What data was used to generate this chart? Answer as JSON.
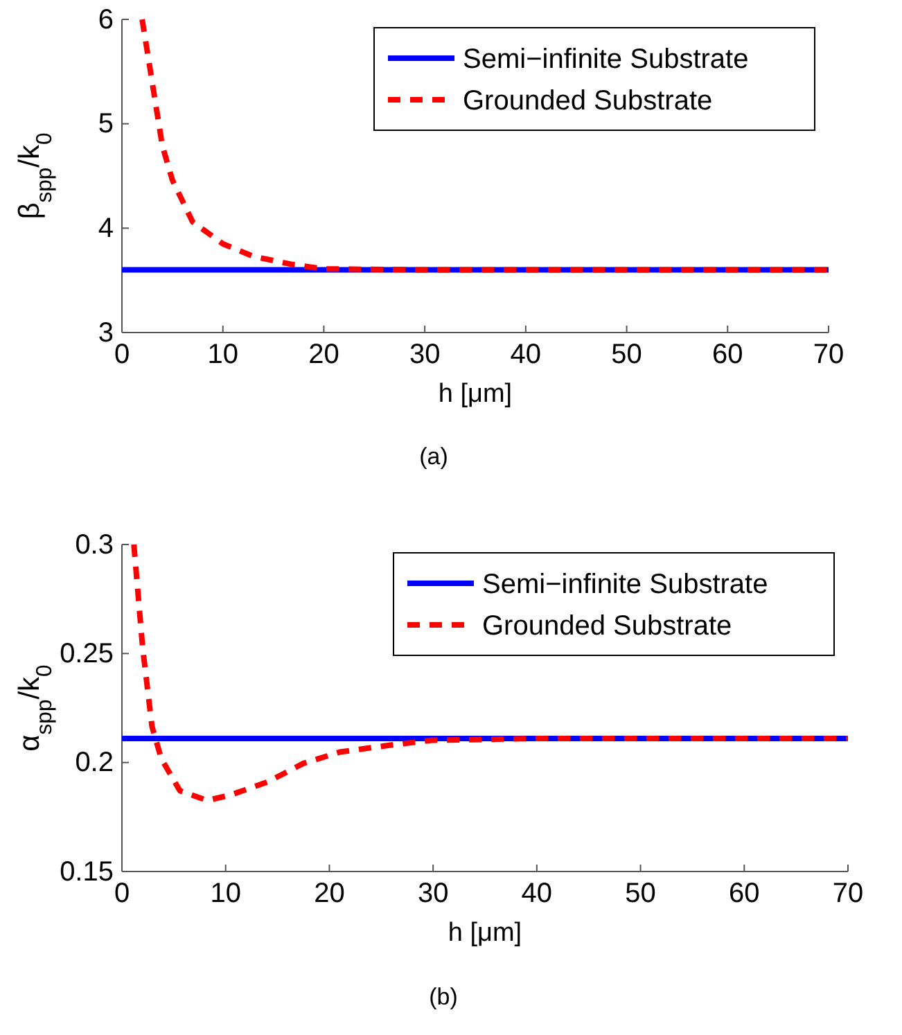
{
  "chart_data": [
    {
      "type": "line",
      "xlabel": "h [μm]",
      "ylabel": "β$_{spp}$/k$_{0}$",
      "xlim": [
        0,
        70
      ],
      "ylim": [
        3,
        6
      ],
      "xticks": [
        0,
        10,
        20,
        30,
        40,
        50,
        60,
        70
      ],
      "yticks": [
        3,
        4,
        5,
        6
      ],
      "legend": "top right",
      "grid": false,
      "annotations": [
        "(a)"
      ],
      "series": [
        {
          "name": "Semi−infinite Substrate",
          "color": "#0000ff",
          "line_style": "solid",
          "x": [
            0,
            70
          ],
          "values": [
            3.6,
            3.6
          ]
        },
        {
          "name": "Grounded Substrate",
          "color": "#ff0000",
          "line_style": "dashed",
          "x": [
            2,
            2.5,
            4,
            5,
            7,
            10,
            13,
            17,
            20,
            30,
            70
          ],
          "values": [
            6,
            5.7,
            4.79,
            4.46,
            4.06,
            3.85,
            3.73,
            3.65,
            3.61,
            3.6,
            3.6
          ]
        }
      ]
    },
    {
      "type": "line",
      "xlabel": "h [μm]",
      "ylabel": "α$_{spp}$/k$_{0}$",
      "xlim": [
        0,
        70
      ],
      "ylim": [
        0.15,
        0.3
      ],
      "xticks": [
        0,
        10,
        20,
        30,
        40,
        50,
        60,
        70
      ],
      "yticks": [
        0.15,
        0.2,
        0.25,
        0.3
      ],
      "legend": "top right",
      "grid": false,
      "annotations": [
        "(b)"
      ],
      "series": [
        {
          "name": "Semi−infinite Substrate",
          "color": "#0000ff",
          "line_style": "solid",
          "x": [
            0,
            70
          ],
          "values": [
            0.211,
            0.211
          ]
        },
        {
          "name": "Grounded Substrate",
          "color": "#ff0000",
          "line_style": "dashed",
          "x": [
            1.15,
            2,
            2.9,
            3.8,
            5.6,
            8.2,
            10.4,
            14,
            17.5,
            21,
            25.9,
            29.9,
            40,
            70
          ],
          "values": [
            0.3,
            0.2525,
            0.2165,
            0.2017,
            0.187,
            0.1826,
            0.185,
            0.191,
            0.1996,
            0.2048,
            0.208,
            0.2102,
            0.211,
            0.211
          ]
        }
      ]
    }
  ]
}
